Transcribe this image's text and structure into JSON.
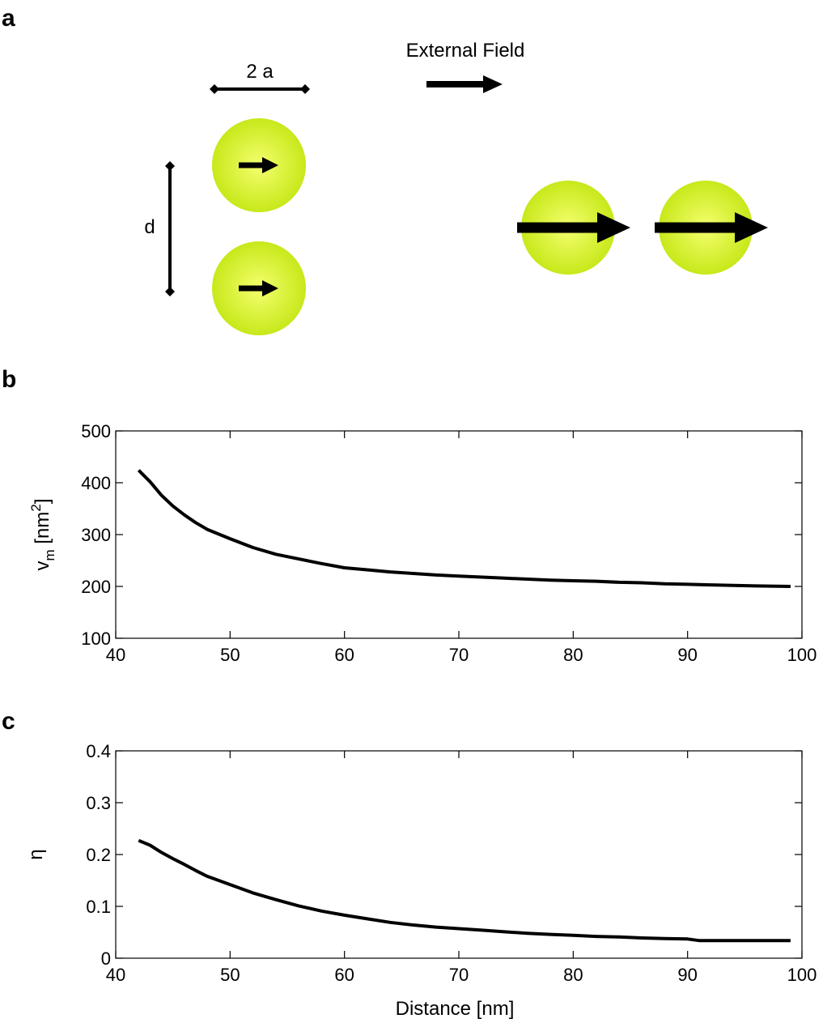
{
  "panels": {
    "a": "a",
    "b": "b",
    "c": "c"
  },
  "schematic": {
    "diameter_label": "2 a",
    "distance_label": "d",
    "field_label": "External Field",
    "particle_color": "#c8e81a",
    "particle_center_color": "#f4ff6e"
  },
  "chart_data": [
    {
      "type": "line",
      "panel": "b",
      "xlabel": "",
      "ylabel_main": "v",
      "ylabel_sub": "m",
      "ylabel_unit_pre": " [nm",
      "ylabel_sup": "2",
      "ylabel_unit_post": "]",
      "xlim": [
        40,
        100
      ],
      "ylim": [
        100,
        500
      ],
      "xticks": [
        "40",
        "50",
        "60",
        "70",
        "80",
        "90",
        "100"
      ],
      "yticks": [
        "100",
        "200",
        "300",
        "400",
        "500"
      ],
      "grid": false,
      "series": [
        {
          "x": [
            42,
            43,
            44,
            45,
            46,
            47,
            48,
            50,
            52,
            54,
            56,
            58,
            60,
            62,
            64,
            66,
            68,
            70,
            72,
            74,
            76,
            78,
            80,
            82,
            84,
            86,
            88,
            90,
            92,
            94,
            96,
            99
          ],
          "y": [
            424,
            402,
            376,
            355,
            338,
            323,
            310,
            292,
            275,
            262,
            253,
            244,
            236,
            232,
            228,
            225,
            222,
            220,
            218,
            216,
            214,
            212,
            211,
            210,
            208,
            207,
            205,
            204,
            203,
            202,
            201,
            200
          ]
        }
      ]
    },
    {
      "type": "line",
      "panel": "c",
      "xlabel": "Distance [nm]",
      "ylabel": "η",
      "xlim": [
        40,
        100
      ],
      "ylim": [
        0,
        0.4
      ],
      "xticks": [
        "40",
        "50",
        "60",
        "70",
        "80",
        "90",
        "100"
      ],
      "yticks": [
        "0",
        "0.1",
        "0.2",
        "0.3",
        "0.4"
      ],
      "grid": false,
      "series": [
        {
          "x": [
            42,
            43,
            44,
            45,
            46,
            47,
            48,
            50,
            52,
            54,
            56,
            58,
            60,
            62,
            64,
            66,
            68,
            70,
            72,
            74,
            76,
            78,
            80,
            82,
            84,
            86,
            88,
            90,
            91,
            92,
            94,
            96,
            99
          ],
          "y": [
            0.227,
            0.218,
            0.204,
            0.192,
            0.181,
            0.169,
            0.158,
            0.142,
            0.126,
            0.113,
            0.101,
            0.091,
            0.083,
            0.076,
            0.069,
            0.064,
            0.06,
            0.057,
            0.054,
            0.051,
            0.048,
            0.046,
            0.044,
            0.042,
            0.041,
            0.039,
            0.038,
            0.037,
            0.034,
            0.034,
            0.034,
            0.034,
            0.034
          ]
        }
      ]
    }
  ]
}
